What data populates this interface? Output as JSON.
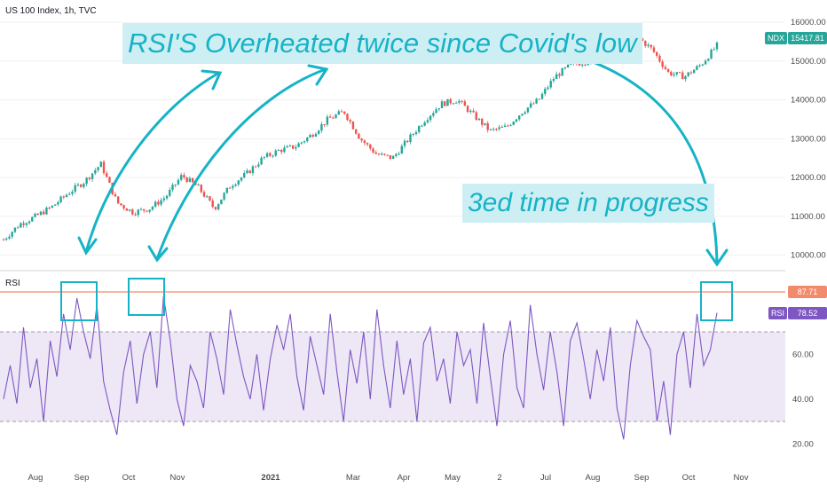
{
  "header": {
    "symbol_title": "US 100 Index, 1h, TVC",
    "rsi_pane_label": "RSI"
  },
  "annotations": {
    "title": "RSI'S Overheated twice since Covid's low",
    "note": "3ed time in progress"
  },
  "colors": {
    "accent": "#16b3c7",
    "annotation_fill": "#cdeff3",
    "up_candle": "#26a69a",
    "down_candle": "#ef5350",
    "rsi_line": "#7e57c2",
    "rsi_band": "#ede7f6",
    "overbought_line": "#f28b6b"
  },
  "chart_data": [
    {
      "type": "candlestick",
      "title": "US 100 Index, 1h, TVC",
      "ylim": [
        9600,
        16300
      ],
      "y_ticks": [
        "10000.00",
        "11000.00",
        "12000.00",
        "13000.00",
        "14000.00",
        "15000.00",
        "16000.00"
      ],
      "x_ticks": [
        "Aug",
        "Sep",
        "Oct",
        "Nov",
        "2021",
        "Mar",
        "Apr",
        "May",
        "2",
        "Jul",
        "Aug",
        "Sep",
        "Oct",
        "Nov"
      ],
      "last_value_label": {
        "name": "NDX",
        "value": "15417.81"
      },
      "series": [
        {
          "name": "NDX",
          "approx_close_path": [
            [
              "Jul 2020",
              10400
            ],
            [
              "Jul 2020",
              10800
            ],
            [
              "Aug 2020",
              11000
            ],
            [
              "Aug 2020",
              11250
            ],
            [
              "Aug 2020",
              11600
            ],
            [
              "Aug 2020",
              11900
            ],
            [
              "Sep 2020",
              12350
            ],
            [
              "Sep 2020",
              11350
            ],
            [
              "Sep 2020",
              11100
            ],
            [
              "Sep 2020",
              11200
            ],
            [
              "Oct 2020",
              11500
            ],
            [
              "Oct 2020",
              12050
            ],
            [
              "Oct 2020",
              11750
            ],
            [
              "Oct 2020",
              11200
            ],
            [
              "Nov 2020",
              11800
            ],
            [
              "Nov 2020",
              12100
            ],
            [
              "Dec 2020",
              12500
            ],
            [
              "Dec 2020",
              12700
            ],
            [
              "Jan 2021",
              12800
            ],
            [
              "Jan 2021",
              13100
            ],
            [
              "Feb 2021",
              13500
            ],
            [
              "Feb 2021",
              13700
            ],
            [
              "Feb 2021",
              13000
            ],
            [
              "Mar 2021",
              12600
            ],
            [
              "Mar 2021",
              12500
            ],
            [
              "Mar 2021",
              13000
            ],
            [
              "Apr 2021",
              13500
            ],
            [
              "Apr 2021",
              13900
            ],
            [
              "Apr 2021",
              14000
            ],
            [
              "May 2021",
              13600
            ],
            [
              "May 2021",
              13200
            ],
            [
              "May 2021",
              13300
            ],
            [
              "Jun 2021",
              13700
            ],
            [
              "Jun 2021",
              14000
            ],
            [
              "Jul 2021",
              14600
            ],
            [
              "Jul 2021",
              14900
            ],
            [
              "Jul 2021",
              15000
            ],
            [
              "Aug 2021",
              15200
            ],
            [
              "Aug 2021",
              15350
            ],
            [
              "Sep 2021",
              15650
            ],
            [
              "Sep 2021",
              15300
            ],
            [
              "Oct 2021",
              14700
            ],
            [
              "Oct 2021",
              14600
            ],
            [
              "Oct 2021",
              14900
            ],
            [
              "Oct 2021",
              15400
            ]
          ]
        }
      ]
    },
    {
      "type": "line",
      "title": "RSI",
      "ylim": [
        10,
        100
      ],
      "y_ticks": [
        "20.00",
        "40.00",
        "60.00"
      ],
      "reference_lines": [
        30,
        70,
        87.71
      ],
      "band": [
        30,
        70
      ],
      "last_value_labels": [
        {
          "name": "",
          "value": "87.71"
        },
        {
          "name": "RSI",
          "value": "78.52"
        }
      ],
      "series": [
        {
          "name": "RSI",
          "values": [
            40,
            55,
            38,
            72,
            45,
            58,
            30,
            66,
            50,
            78,
            62,
            85,
            70,
            58,
            82,
            48,
            35,
            24,
            52,
            66,
            38,
            60,
            70,
            45,
            86,
            66,
            40,
            28,
            55,
            48,
            36,
            70,
            58,
            42,
            80,
            64,
            50,
            40,
            60,
            35,
            58,
            73,
            62,
            78,
            50,
            35,
            68,
            55,
            42,
            78,
            52,
            30,
            62,
            47,
            70,
            40,
            80,
            55,
            36,
            66,
            42,
            58,
            30,
            65,
            72,
            48,
            58,
            38,
            70,
            55,
            62,
            38,
            74,
            50,
            28,
            60,
            75,
            45,
            36,
            82,
            60,
            44,
            70,
            52,
            28,
            66,
            74,
            58,
            40,
            62,
            48,
            72,
            36,
            22,
            55,
            75,
            68,
            62,
            30,
            48,
            24,
            60,
            70,
            45,
            78,
            55,
            62,
            78.52
          ]
        }
      ]
    }
  ]
}
